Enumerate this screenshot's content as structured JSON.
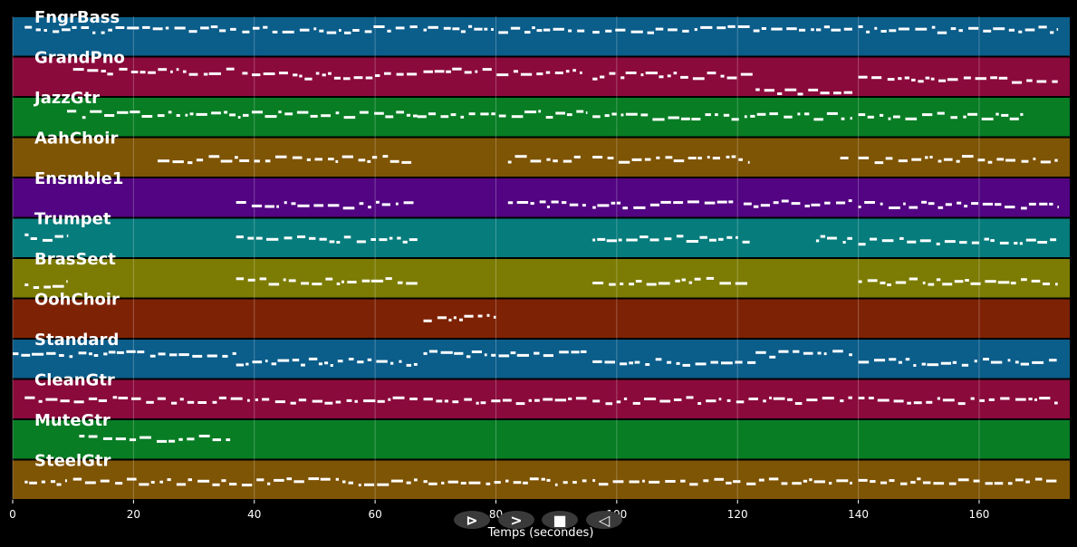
{
  "chart_data": {
    "type": "piano-roll",
    "xlabel": "Temps (secondes)",
    "xlim": [
      0,
      175
    ],
    "xticks": [
      0,
      20,
      40,
      60,
      80,
      100,
      120,
      140,
      160
    ],
    "grid": true,
    "tracks": [
      {
        "name": "FngrBass",
        "color": "#0b5d8a",
        "segments": [
          [
            2,
            37,
            0.3
          ],
          [
            38,
            67,
            0.3
          ],
          [
            68,
            95,
            0.3
          ],
          [
            96,
            139,
            0.3
          ],
          [
            140,
            173,
            0.3
          ]
        ]
      },
      {
        "name": "GrandPno",
        "color": "#8a0a3c",
        "segments": [
          [
            10,
            37,
            0.35
          ],
          [
            38,
            67,
            0.45
          ],
          [
            68,
            95,
            0.35
          ],
          [
            96,
            123,
            0.45
          ],
          [
            123,
            139,
            0.82
          ],
          [
            140,
            173,
            0.55
          ]
        ]
      },
      {
        "name": "JazzGtr",
        "color": "#087d24",
        "segments": [
          [
            9,
            67,
            0.4
          ],
          [
            67,
            95,
            0.4
          ],
          [
            96,
            139,
            0.45
          ],
          [
            140,
            168,
            0.45
          ]
        ]
      },
      {
        "name": "AahChoir",
        "color": "#7e5405",
        "segments": [
          [
            24,
            66,
            0.52
          ],
          [
            82,
            94,
            0.52
          ],
          [
            96,
            122,
            0.52
          ],
          [
            137,
            139,
            0.45
          ],
          [
            140,
            173,
            0.52
          ]
        ]
      },
      {
        "name": "Ensmble1",
        "color": "#520482",
        "segments": [
          [
            37,
            67,
            0.65
          ],
          [
            82,
            95,
            0.62
          ],
          [
            96,
            120,
            0.65
          ],
          [
            121,
            139,
            0.62
          ],
          [
            140,
            173,
            0.65
          ]
        ]
      },
      {
        "name": "Trumpet",
        "color": "#077c7c",
        "segments": [
          [
            2,
            9,
            0.45
          ],
          [
            37,
            67,
            0.5
          ],
          [
            96,
            122,
            0.5
          ],
          [
            133,
            139,
            0.5
          ],
          [
            140,
            173,
            0.55
          ]
        ]
      },
      {
        "name": "BrasSect",
        "color": "#7c7c05",
        "segments": [
          [
            2,
            9,
            0.62
          ],
          [
            37,
            67,
            0.55
          ],
          [
            96,
            122,
            0.55
          ],
          [
            140,
            173,
            0.55
          ]
        ]
      },
      {
        "name": "OohChoir",
        "color": "#7e2205",
        "segments": [
          [
            68,
            80,
            0.45
          ]
        ]
      },
      {
        "name": "Standard",
        "color": "#0b5d8a",
        "segments": [
          [
            0,
            37,
            0.35
          ],
          [
            37,
            67,
            0.55
          ],
          [
            68,
            95,
            0.35
          ],
          [
            96,
            123,
            0.55
          ],
          [
            123,
            139,
            0.35
          ],
          [
            140,
            173,
            0.55
          ]
        ]
      },
      {
        "name": "CleanGtr",
        "color": "#8a0a3c",
        "segments": [
          [
            2,
            67,
            0.5
          ],
          [
            68,
            95,
            0.5
          ],
          [
            96,
            139,
            0.5
          ],
          [
            140,
            173,
            0.5
          ]
        ]
      },
      {
        "name": "MuteGtr",
        "color": "#087d24",
        "segments": [
          [
            11,
            36,
            0.45
          ]
        ]
      },
      {
        "name": "SteelGtr",
        "color": "#7e5405",
        "segments": [
          [
            2,
            9,
            0.52
          ],
          [
            10,
            67,
            0.52
          ],
          [
            68,
            95,
            0.52
          ],
          [
            96,
            139,
            0.52
          ],
          [
            140,
            173,
            0.52
          ]
        ]
      }
    ]
  },
  "colors": {
    "background": "#000000",
    "note": "#ffffff",
    "grid": "#ffffff",
    "control": "#3a3a3a"
  },
  "controls": [
    {
      "name": "back-to-start-icon",
      "glyph": "⊳"
    },
    {
      "name": "play-icon",
      "glyph": ">"
    },
    {
      "name": "stop-icon",
      "glyph": "■"
    },
    {
      "name": "rewind-icon",
      "glyph": "◁"
    }
  ]
}
